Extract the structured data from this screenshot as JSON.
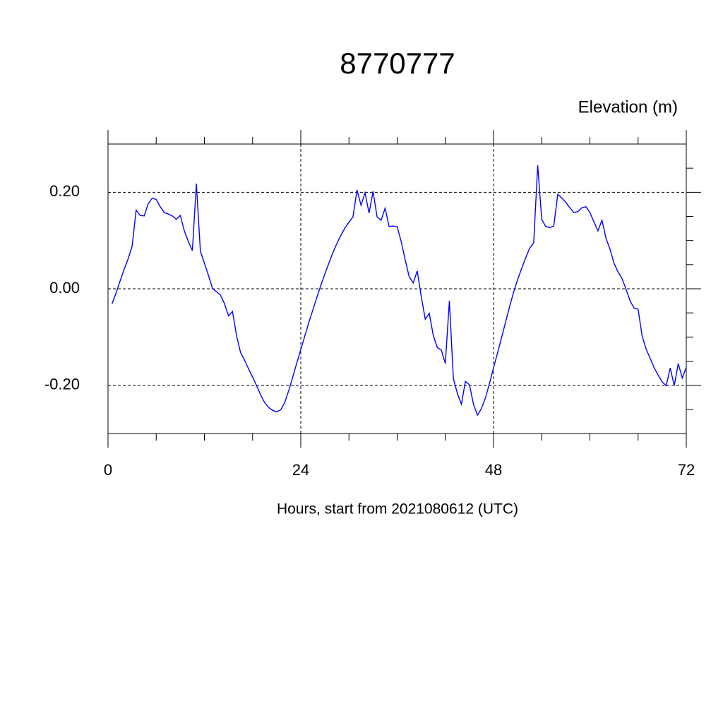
{
  "chart_data": {
    "type": "line",
    "title": "8770777",
    "ylabel": "Elevation (m)",
    "xlabel": "Hours, start from 2021080612 (UTC)",
    "xlim": [
      0,
      72
    ],
    "xticks": [
      0,
      24,
      48,
      72
    ],
    "xminorticks": [
      6,
      12,
      18,
      30,
      36,
      42,
      54,
      60,
      66
    ],
    "ylim": [
      -0.3,
      0.3
    ],
    "yticks": [
      {
        "value": -0.2,
        "label": "-0.20"
      },
      {
        "value": 0,
        "label": "0.00"
      },
      {
        "value": 0.2,
        "label": "0.20"
      }
    ],
    "yminorticks": [
      -0.25,
      -0.15,
      -0.1,
      -0.05,
      0.05,
      0.1,
      0.15,
      0.25
    ],
    "grid": true,
    "series": [
      {
        "color": "#0000ff",
        "x": [
          0.5,
          1,
          1.5,
          2,
          2.5,
          3,
          3.5,
          4,
          4.5,
          5,
          5.5,
          6,
          6.5,
          7,
          7.5,
          8,
          8.5,
          9,
          9.5,
          10,
          10.5,
          11,
          11.5,
          12,
          12.5,
          13,
          13.5,
          14,
          14.5,
          15,
          15.5,
          16,
          16.5,
          17,
          17.5,
          18,
          18.5,
          19,
          19.5,
          20,
          20.5,
          21,
          21.5,
          22,
          22.5,
          23,
          23.5,
          24,
          24.5,
          25,
          25.5,
          26,
          26.5,
          27,
          27.5,
          28,
          28.5,
          29,
          29.5,
          30,
          30.5,
          31,
          31.5,
          32,
          32.5,
          33,
          33.5,
          34,
          34.5,
          35,
          35.5,
          36,
          36.5,
          37,
          37.5,
          38,
          38.5,
          39,
          39.5,
          40,
          40.5,
          41,
          41.5,
          42,
          42.5,
          43,
          43.5,
          44,
          44.5,
          45,
          45.5,
          46,
          46.5,
          47,
          47.5,
          48,
          48.5,
          49,
          49.5,
          50,
          50.5,
          51,
          51.5,
          52,
          52.5,
          53,
          53.5,
          54,
          54.5,
          55,
          55.5,
          56,
          56.5,
          57,
          57.5,
          58,
          58.5,
          59,
          59.5,
          60,
          60.5,
          61,
          61.5,
          62,
          62.5,
          63,
          63.5,
          64,
          64.5,
          65,
          65.5,
          66,
          66.5,
          67,
          67.5,
          68,
          68.5,
          69,
          69.5,
          70,
          70.5,
          71,
          71.5,
          72
        ],
        "values": [
          -0.031,
          -0.009,
          0.016,
          0.04,
          0.062,
          0.088,
          0.163,
          0.152,
          0.151,
          0.176,
          0.188,
          0.185,
          0.17,
          0.158,
          0.155,
          0.151,
          0.144,
          0.152,
          0.12,
          0.098,
          0.079,
          0.218,
          0.078,
          0.053,
          0.028,
          0.001,
          -0.006,
          -0.013,
          -0.031,
          -0.056,
          -0.047,
          -0.097,
          -0.132,
          -0.148,
          -0.166,
          -0.183,
          -0.201,
          -0.22,
          -0.236,
          -0.246,
          -0.252,
          -0.255,
          -0.251,
          -0.236,
          -0.211,
          -0.183,
          -0.154,
          -0.126,
          -0.098,
          -0.07,
          -0.044,
          -0.018,
          0.007,
          0.031,
          0.053,
          0.075,
          0.094,
          0.111,
          0.126,
          0.138,
          0.149,
          0.205,
          0.173,
          0.199,
          0.157,
          0.202,
          0.149,
          0.142,
          0.167,
          0.129,
          0.13,
          0.129,
          0.098,
          0.06,
          0.025,
          0.012,
          0.037,
          -0.016,
          -0.063,
          -0.051,
          -0.097,
          -0.122,
          -0.127,
          -0.155,
          -0.025,
          -0.186,
          -0.217,
          -0.239,
          -0.192,
          -0.199,
          -0.239,
          -0.262,
          -0.248,
          -0.226,
          -0.196,
          -0.164,
          -0.133,
          -0.101,
          -0.069,
          -0.037,
          -0.007,
          0.019,
          0.042,
          0.064,
          0.084,
          0.095,
          0.256,
          0.144,
          0.129,
          0.127,
          0.13,
          0.196,
          0.188,
          0.179,
          0.168,
          0.158,
          0.16,
          0.168,
          0.17,
          0.158,
          0.139,
          0.12,
          0.142,
          0.105,
          0.082,
          0.053,
          0.035,
          0.021,
          -0.001,
          -0.025,
          -0.04,
          -0.042,
          -0.098,
          -0.125,
          -0.144,
          -0.164,
          -0.179,
          -0.193,
          -0.201,
          -0.164,
          -0.201,
          -0.155,
          -0.185,
          -0.163
        ]
      }
    ]
  }
}
